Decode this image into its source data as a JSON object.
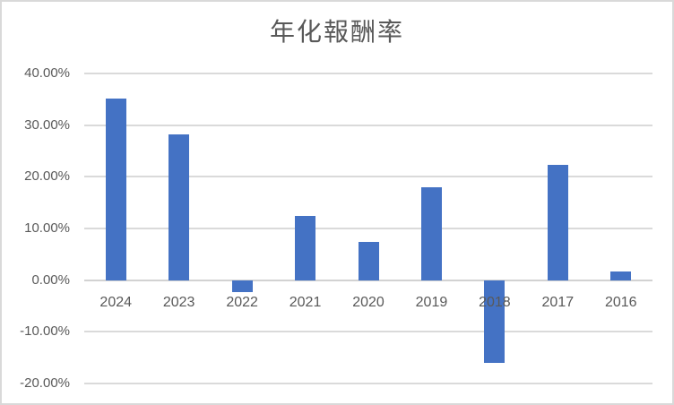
{
  "chart_data": {
    "type": "bar",
    "title": "年化報酬率",
    "categories": [
      "2024",
      "2023",
      "2022",
      "2021",
      "2020",
      "2019",
      "2018",
      "2017",
      "2016"
    ],
    "values": [
      35.2,
      28.2,
      -2.4,
      12.4,
      7.4,
      17.9,
      -16.0,
      22.3,
      1.7
    ],
    "unit": "%",
    "xlabel": "",
    "ylabel": "",
    "ylim": [
      -20,
      40
    ],
    "yticks": [
      40,
      30,
      20,
      10,
      0,
      -10,
      -20
    ],
    "ytick_labels": [
      "40.00%",
      "30.00%",
      "20.00%",
      "10.00%",
      "0.00%",
      "-10.00%",
      "-20.00%"
    ],
    "grid": true,
    "legend": false,
    "colors": {
      "bar": "#4472c4",
      "gridline": "#dadada",
      "axis_line": "#d2d2d2",
      "text": "#595959",
      "border": "#d9d9d9",
      "background": "#ffffff"
    }
  }
}
